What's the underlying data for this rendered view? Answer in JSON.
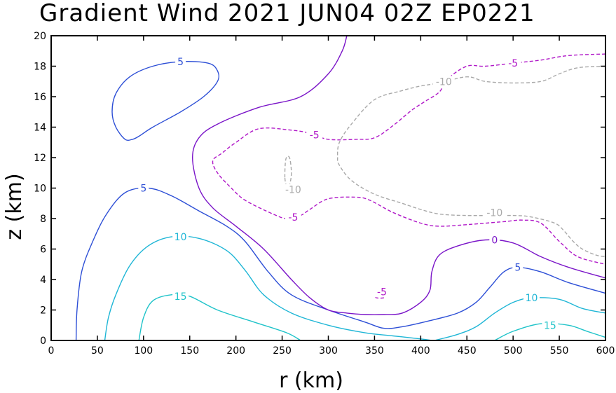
{
  "chart_data": {
    "type": "contour",
    "title": "Gradient Wind 2021 JUN04 02Z   EP0221",
    "xlabel": "r (km)",
    "ylabel": "z (km)",
    "xlim": [
      0,
      600
    ],
    "ylim": [
      0,
      20
    ],
    "xticks": [
      0,
      50,
      100,
      150,
      200,
      250,
      300,
      350,
      400,
      450,
      500,
      550,
      600
    ],
    "yticks": [
      0,
      2,
      4,
      6,
      8,
      10,
      12,
      14,
      16,
      18,
      20
    ],
    "grid": false,
    "colors": {
      "15": "#1fc3c9",
      "10": "#1fb6d6",
      "5": "#2d4fd6",
      "0": "#7a14c8",
      "-5": "#b018c8",
      "-10": "#a9a9a9"
    },
    "contours": [
      {
        "level": 15,
        "style": "solid",
        "points": [
          [
            95,
            0
          ],
          [
            100,
            1.5
          ],
          [
            110,
            2.6
          ],
          [
            130,
            3
          ],
          [
            150,
            2.9
          ],
          [
            180,
            2
          ],
          [
            220,
            1.2
          ],
          [
            255,
            0.5
          ],
          [
            270,
            0
          ]
        ]
      },
      {
        "level": 15,
        "style": "solid",
        "points": [
          [
            480,
            0
          ],
          [
            500,
            0.6
          ],
          [
            530,
            1.1
          ],
          [
            560,
            1
          ],
          [
            580,
            0.6
          ],
          [
            600,
            0.2
          ]
        ]
      },
      {
        "level": 10,
        "style": "solid",
        "points": [
          [
            58,
            0
          ],
          [
            62,
            1.5
          ],
          [
            70,
            3
          ],
          [
            85,
            4.9
          ],
          [
            105,
            6.2
          ],
          [
            130,
            6.8
          ],
          [
            160,
            6.7
          ],
          [
            190,
            5.9
          ],
          [
            210,
            4.6
          ],
          [
            230,
            3
          ],
          [
            260,
            1.8
          ],
          [
            300,
            1
          ],
          [
            340,
            0.5
          ],
          [
            370,
            0.3
          ],
          [
            400,
            0.1
          ],
          [
            412,
            0
          ]
        ]
      },
      {
        "level": 10,
        "style": "solid",
        "points": [
          [
            415,
            0
          ],
          [
            440,
            0.4
          ],
          [
            460,
            0.9
          ],
          [
            480,
            1.8
          ],
          [
            500,
            2.5
          ],
          [
            520,
            2.8
          ],
          [
            550,
            2.7
          ],
          [
            575,
            2.1
          ],
          [
            600,
            1.8
          ]
        ]
      },
      {
        "level": 5,
        "style": "solid",
        "points": [
          [
            27,
            0
          ],
          [
            28,
            2
          ],
          [
            33,
            4.5
          ],
          [
            45,
            6.5
          ],
          [
            60,
            8.3
          ],
          [
            80,
            9.7
          ],
          [
            105,
            10
          ],
          [
            130,
            9.5
          ],
          [
            160,
            8.5
          ],
          [
            190,
            7.5
          ],
          [
            210,
            6.5
          ],
          [
            235,
            4.5
          ],
          [
            260,
            3
          ],
          [
            300,
            2
          ],
          [
            340,
            1.2
          ],
          [
            360,
            0.8
          ],
          [
            380,
            0.9
          ],
          [
            410,
            1.3
          ],
          [
            440,
            1.8
          ],
          [
            460,
            2.5
          ],
          [
            475,
            3.5
          ],
          [
            490,
            4.5
          ],
          [
            505,
            4.8
          ],
          [
            530,
            4.5
          ],
          [
            560,
            3.8
          ],
          [
            600,
            3.1
          ]
        ]
      },
      {
        "level": 5,
        "style": "solid",
        "closed": true,
        "points": [
          [
            80,
            13.2
          ],
          [
            70,
            14
          ],
          [
            66,
            15
          ],
          [
            70,
            16.2
          ],
          [
            85,
            17.3
          ],
          [
            110,
            18
          ],
          [
            140,
            18.3
          ],
          [
            170,
            18.2
          ],
          [
            180,
            17.7
          ],
          [
            180,
            17
          ],
          [
            165,
            16
          ],
          [
            140,
            15
          ],
          [
            110,
            14
          ],
          [
            95,
            13.4
          ],
          [
            88,
            13.2
          ]
        ]
      },
      {
        "level": 0,
        "style": "solid",
        "points": [
          [
            320,
            20
          ],
          [
            315,
            19
          ],
          [
            300,
            17.5
          ],
          [
            270,
            16
          ],
          [
            225,
            15.3
          ],
          [
            180,
            14.2
          ],
          [
            160,
            13.3
          ],
          [
            153,
            12
          ],
          [
            160,
            10
          ],
          [
            175,
            8.7
          ],
          [
            200,
            7.5
          ],
          [
            230,
            6
          ],
          [
            260,
            4
          ],
          [
            280,
            2.8
          ],
          [
            300,
            2
          ],
          [
            320,
            1.8
          ],
          [
            340,
            1.7
          ],
          [
            360,
            1.7
          ],
          [
            380,
            1.8
          ],
          [
            400,
            2.5
          ],
          [
            410,
            3.3
          ],
          [
            412,
            4.5
          ],
          [
            420,
            5.6
          ],
          [
            440,
            6.2
          ],
          [
            470,
            6.6
          ],
          [
            500,
            6.4
          ],
          [
            530,
            5.5
          ],
          [
            560,
            4.8
          ],
          [
            600,
            4.1
          ]
        ]
      },
      {
        "level": -5,
        "style": "dashed",
        "points": [
          [
            600,
            18.8
          ],
          [
            560,
            18.7
          ],
          [
            530,
            18.4
          ],
          [
            500,
            18.2
          ],
          [
            470,
            18
          ],
          [
            450,
            18
          ],
          [
            430,
            17.2
          ],
          [
            420,
            16.3
          ],
          [
            405,
            15.7
          ],
          [
            390,
            15.1
          ],
          [
            370,
            14.1
          ],
          [
            350,
            13.3
          ],
          [
            330,
            13.2
          ],
          [
            300,
            13.2
          ],
          [
            280,
            13.6
          ],
          [
            260,
            13.8
          ],
          [
            225,
            13.9
          ],
          [
            200,
            13
          ],
          [
            185,
            12.3
          ],
          [
            175,
            11.8
          ],
          [
            180,
            11
          ],
          [
            195,
            10
          ],
          [
            210,
            9.2
          ],
          [
            240,
            8.3
          ],
          [
            255,
            8
          ],
          [
            270,
            8.2
          ],
          [
            280,
            8.6
          ],
          [
            300,
            9.3
          ],
          [
            330,
            9.4
          ],
          [
            345,
            9.2
          ],
          [
            370,
            8.4
          ],
          [
            400,
            7.7
          ],
          [
            420,
            7.5
          ],
          [
            450,
            7.6
          ],
          [
            490,
            7.8
          ],
          [
            510,
            7.9
          ],
          [
            530,
            7.7
          ],
          [
            550,
            6.5
          ],
          [
            570,
            5.5
          ],
          [
            600,
            5
          ]
        ]
      },
      {
        "level": -5,
        "style": "dashed",
        "closed": true,
        "points": [
          [
            350,
            3.0
          ],
          [
            352,
            3.3
          ],
          [
            360,
            3.3
          ],
          [
            363,
            3.0
          ],
          [
            360,
            2.8
          ],
          [
            352,
            2.8
          ]
        ]
      },
      {
        "level": -10,
        "style": "dashed",
        "points": [
          [
            600,
            18
          ],
          [
            570,
            17.9
          ],
          [
            550,
            17.5
          ],
          [
            530,
            17
          ],
          [
            500,
            16.9
          ],
          [
            470,
            17
          ],
          [
            450,
            17.3
          ],
          [
            420,
            16.9
          ],
          [
            400,
            16.7
          ],
          [
            380,
            16.4
          ],
          [
            350,
            15.8
          ],
          [
            325,
            14.2
          ],
          [
            312,
            13
          ],
          [
            310,
            12
          ],
          [
            312,
            11.5
          ],
          [
            325,
            10.5
          ],
          [
            350,
            9.6
          ],
          [
            380,
            9
          ],
          [
            400,
            8.6
          ],
          [
            420,
            8.3
          ],
          [
            450,
            8.2
          ],
          [
            500,
            8.2
          ],
          [
            520,
            8.1
          ],
          [
            545,
            7.7
          ],
          [
            555,
            7.2
          ],
          [
            565,
            6.5
          ],
          [
            575,
            6
          ],
          [
            590,
            5.6
          ],
          [
            600,
            5.5
          ]
        ]
      },
      {
        "level": -10,
        "style": "dashed",
        "closed": true,
        "points": [
          [
            253,
            10.7
          ],
          [
            254,
            11.9
          ],
          [
            258,
            12
          ],
          [
            260,
            11
          ],
          [
            258,
            10.2
          ],
          [
            255,
            10.1
          ]
        ]
      }
    ],
    "labels": [
      {
        "text": "5",
        "level": 5,
        "x": 140,
        "y": 18.3
      },
      {
        "text": "5",
        "level": 5,
        "x": 100,
        "y": 10
      },
      {
        "text": "5",
        "level": 5,
        "x": 505,
        "y": 4.8
      },
      {
        "text": "10",
        "level": 10,
        "x": 140,
        "y": 6.8
      },
      {
        "text": "10",
        "level": 10,
        "x": 520,
        "y": 2.8
      },
      {
        "text": "15",
        "level": 15,
        "x": 140,
        "y": 2.9
      },
      {
        "text": "15",
        "level": 15,
        "x": 540,
        "y": 1.0
      },
      {
        "text": "0",
        "level": 0,
        "x": 480,
        "y": 6.6
      },
      {
        "text": "-5",
        "level": -5,
        "x": 500,
        "y": 18.2
      },
      {
        "text": "-5",
        "level": -5,
        "x": 285,
        "y": 13.5
      },
      {
        "text": "-5",
        "level": -5,
        "x": 262,
        "y": 8.1
      },
      {
        "text": "-5",
        "level": -5,
        "x": 358,
        "y": 3.2
      },
      {
        "text": "-10",
        "level": -10,
        "x": 425,
        "y": 17.0
      },
      {
        "text": "-10",
        "level": -10,
        "x": 262,
        "y": 9.9
      },
      {
        "text": "-10",
        "level": -10,
        "x": 480,
        "y": 8.4
      }
    ]
  }
}
